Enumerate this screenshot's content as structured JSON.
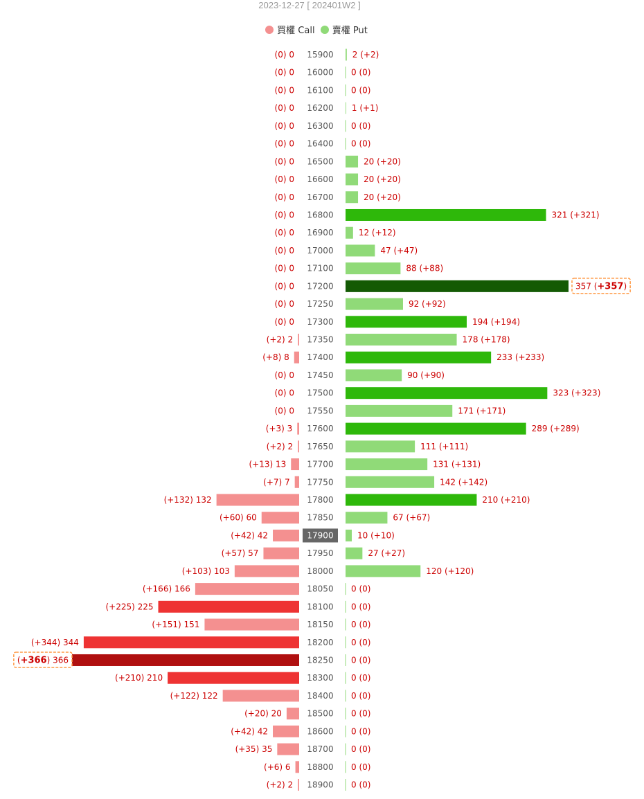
{
  "title": "2023-12-27 [ 202401W2 ]",
  "legend": [
    {
      "label": "買權 Call",
      "color": "#f49090"
    },
    {
      "label": "賣權 Put",
      "color": "#90da78"
    }
  ],
  "colors": {
    "call_light": "#f49090",
    "call_mid": "#ee3333",
    "call_max": "#b01010",
    "put_light": "#90da78",
    "put_mid": "#2eb80a",
    "put_max": "#145a04",
    "label": "#cc0000",
    "strike_label": "#555555",
    "current_bg": "#666666",
    "max_box": "#ff9944"
  },
  "chart_data": {
    "type": "bar",
    "orientation": "horizontal-butterfly",
    "current_strike": "17900",
    "categories": [
      "15900",
      "16000",
      "16100",
      "16200",
      "16300",
      "16400",
      "16500",
      "16600",
      "16700",
      "16800",
      "16900",
      "17000",
      "17100",
      "17200",
      "17250",
      "17300",
      "17350",
      "17400",
      "17450",
      "17500",
      "17550",
      "17600",
      "17650",
      "17700",
      "17750",
      "17800",
      "17850",
      "17900",
      "17950",
      "18000",
      "18050",
      "18100",
      "18150",
      "18200",
      "18250",
      "18300",
      "18400",
      "18500",
      "18600",
      "18700",
      "18800",
      "18900"
    ],
    "series": [
      {
        "name": "買權 Call",
        "values": [
          0,
          0,
          0,
          0,
          0,
          0,
          0,
          0,
          0,
          0,
          0,
          0,
          0,
          0,
          0,
          0,
          2,
          8,
          0,
          0,
          0,
          3,
          2,
          13,
          7,
          132,
          60,
          42,
          57,
          103,
          166,
          225,
          151,
          344,
          366,
          210,
          122,
          20,
          42,
          35,
          6,
          2
        ],
        "changes": [
          0,
          0,
          0,
          0,
          0,
          0,
          0,
          0,
          0,
          0,
          0,
          0,
          0,
          0,
          0,
          0,
          2,
          8,
          0,
          0,
          0,
          3,
          2,
          13,
          7,
          132,
          60,
          42,
          57,
          103,
          166,
          225,
          151,
          344,
          366,
          210,
          122,
          20,
          42,
          35,
          6,
          2
        ],
        "labels": [
          "(0) 0",
          "(0) 0",
          "(0) 0",
          "(0) 0",
          "(0) 0",
          "(0) 0",
          "(0) 0",
          "(0) 0",
          "(0) 0",
          "(0) 0",
          "(0) 0",
          "(0) 0",
          "(0) 0",
          "(0) 0",
          "(0) 0",
          "(0) 0",
          "(+2) 2",
          "(+8) 8",
          "(0) 0",
          "(0) 0",
          "(0) 0",
          "(+3) 3",
          "(+2) 2",
          "(+13) 13",
          "(+7) 7",
          "(+132) 132",
          "(+60) 60",
          "(+42) 42",
          "(+57) 57",
          "(+103) 103",
          "(+166) 166",
          "(+225) 225",
          "(+151) 151",
          "(+344) 344",
          "(+366) 366",
          "(+210) 210",
          "(+122) 122",
          "(+20) 20",
          "(+42) 42",
          "(+35) 35",
          "(+6) 6",
          "(+2) 2"
        ],
        "levels": [
          0,
          0,
          0,
          0,
          0,
          0,
          0,
          0,
          0,
          0,
          0,
          0,
          0,
          0,
          0,
          0,
          0,
          0,
          0,
          0,
          0,
          0,
          0,
          0,
          0,
          0,
          0,
          0,
          0,
          0,
          0,
          1,
          0,
          1,
          2,
          1,
          0,
          0,
          0,
          0,
          0,
          0
        ]
      },
      {
        "name": "賣權 Put",
        "values": [
          2,
          0,
          0,
          1,
          0,
          0,
          20,
          20,
          20,
          321,
          12,
          47,
          88,
          357,
          92,
          194,
          178,
          233,
          90,
          323,
          171,
          289,
          111,
          131,
          142,
          210,
          67,
          10,
          27,
          120,
          0,
          0,
          0,
          0,
          0,
          0,
          0,
          0,
          0,
          0,
          0,
          0
        ],
        "changes": [
          2,
          0,
          0,
          1,
          0,
          0,
          20,
          20,
          20,
          321,
          12,
          47,
          88,
          357,
          92,
          194,
          178,
          233,
          90,
          323,
          171,
          289,
          111,
          131,
          142,
          210,
          67,
          10,
          27,
          120,
          0,
          0,
          0,
          0,
          0,
          0,
          0,
          0,
          0,
          0,
          0,
          0
        ],
        "labels": [
          "2 (+2)",
          "0 (0)",
          "0 (0)",
          "1 (+1)",
          "0 (0)",
          "0 (0)",
          "20 (+20)",
          "20 (+20)",
          "20 (+20)",
          "321 (+321)",
          "12 (+12)",
          "47 (+47)",
          "88 (+88)",
          "357 (+357)",
          "92 (+92)",
          "194 (+194)",
          "178 (+178)",
          "233 (+233)",
          "90 (+90)",
          "323 (+323)",
          "171 (+171)",
          "289 (+289)",
          "111 (+111)",
          "131 (+131)",
          "142 (+142)",
          "210 (+210)",
          "67 (+67)",
          "10 (+10)",
          "27 (+27)",
          "120 (+120)",
          "0 (0)",
          "0 (0)",
          "0 (0)",
          "0 (0)",
          "0 (0)",
          "0 (0)",
          "0 (0)",
          "0 (0)",
          "0 (0)",
          "0 (0)",
          "0 (0)",
          "0 (0)"
        ],
        "levels": [
          0,
          0,
          0,
          0,
          0,
          0,
          0,
          0,
          0,
          1,
          0,
          0,
          0,
          2,
          0,
          1,
          0,
          1,
          0,
          1,
          0,
          1,
          0,
          0,
          0,
          1,
          0,
          0,
          0,
          0,
          0,
          0,
          0,
          0,
          0,
          0,
          0,
          0,
          0,
          0,
          0,
          0
        ]
      }
    ],
    "max_call": {
      "strike": "18250",
      "prefix": "(",
      "change": "+366",
      "suffix": ") 366"
    },
    "max_put": {
      "strike": "17200",
      "prefix": "357 (",
      "change": "+357",
      "suffix": ")"
    }
  }
}
